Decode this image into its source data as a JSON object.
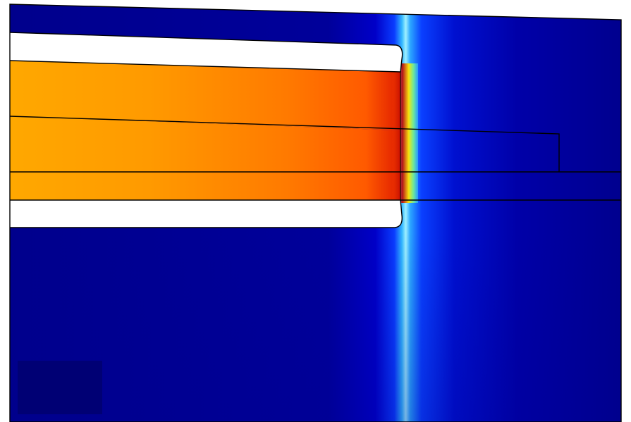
{
  "figure": {
    "kind": "simulation-field-plot",
    "colormap": "jet",
    "colors": {
      "background": "#ffffff",
      "field_low": "#00008c",
      "field_high": "#ff8c00",
      "outline": "#000000",
      "void": "#ffffff"
    },
    "regions": [
      {
        "name": "top-band"
      },
      {
        "name": "upper-void"
      },
      {
        "name": "hot-core-upper"
      },
      {
        "name": "hot-core-middle"
      },
      {
        "name": "hot-core-lower"
      },
      {
        "name": "lower-void"
      },
      {
        "name": "substrate"
      },
      {
        "name": "inset-block"
      }
    ]
  }
}
